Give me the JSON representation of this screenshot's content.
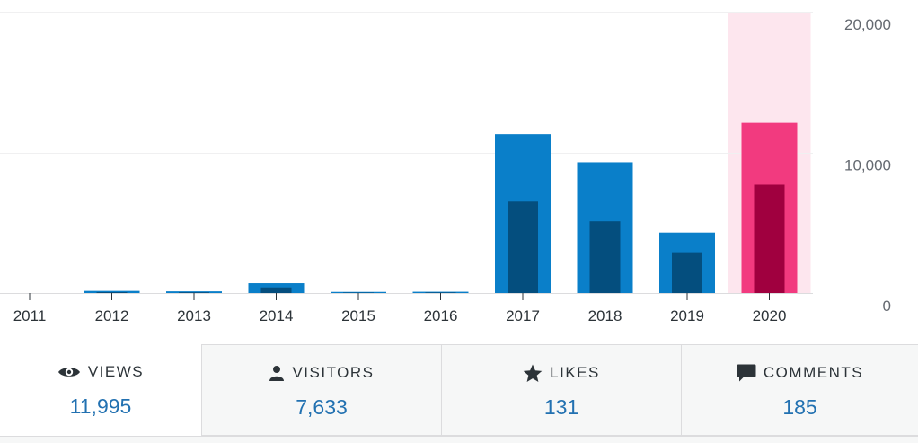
{
  "chart_data": {
    "type": "bar",
    "categories": [
      "2011",
      "2012",
      "2013",
      "2014",
      "2015",
      "2016",
      "2017",
      "2018",
      "2019",
      "2020"
    ],
    "series": [
      {
        "name": "Views",
        "values": [
          0,
          150,
          120,
          700,
          80,
          90,
          11300,
          9300,
          4300,
          12100
        ],
        "color": "#0a7fc9"
      },
      {
        "name": "Visitors",
        "values": [
          0,
          60,
          50,
          400,
          30,
          40,
          6500,
          5100,
          2900,
          7700
        ],
        "color": "#044e7e"
      }
    ],
    "highlight": {
      "category": "2020",
      "bar_color": "#f23a7f",
      "inner_color": "#a0003f",
      "band_color": "#fde6ee"
    },
    "yticks": [
      "0",
      "10,000",
      "20,000"
    ],
    "ytick_values": [
      0,
      10000,
      20000
    ],
    "ylim": [
      0,
      20000
    ],
    "grid": true,
    "xlabel": "",
    "ylabel": ""
  },
  "stats": [
    {
      "icon": "eye-icon",
      "label": "VIEWS",
      "value": "11,995",
      "active": true
    },
    {
      "icon": "person-icon",
      "label": "VISITORS",
      "value": "7,633",
      "active": false
    },
    {
      "icon": "star-icon",
      "label": "LIKES",
      "value": "131",
      "active": false
    },
    {
      "icon": "comment-icon",
      "label": "COMMENTS",
      "value": "185",
      "active": false
    }
  ]
}
